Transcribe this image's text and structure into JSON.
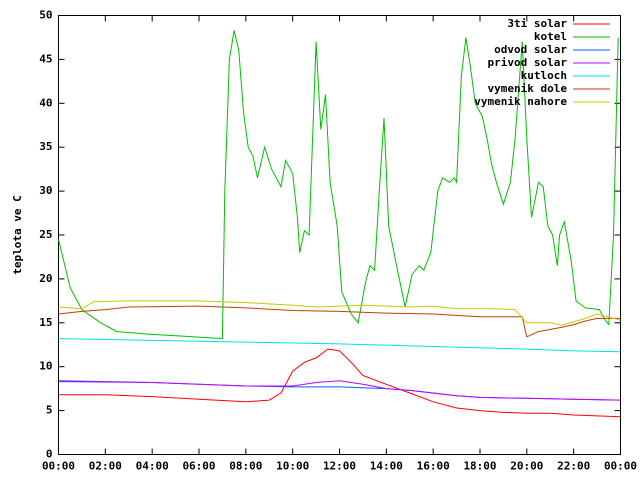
{
  "chart_data": {
    "type": "line",
    "y_label": "teplota ve C",
    "xlim": [
      0,
      24
    ],
    "xticks": [
      {
        "value": 0,
        "label": "00:00"
      },
      {
        "value": 2,
        "label": "02:00"
      },
      {
        "value": 4,
        "label": "04:00"
      },
      {
        "value": 6,
        "label": "06:00"
      },
      {
        "value": 8,
        "label": "08:00"
      },
      {
        "value": 10,
        "label": "10:00"
      },
      {
        "value": 12,
        "label": "12:00"
      },
      {
        "value": 14,
        "label": "14:00"
      },
      {
        "value": 16,
        "label": "16:00"
      },
      {
        "value": 18,
        "label": "18:00"
      },
      {
        "value": 20,
        "label": "20:00"
      },
      {
        "value": 22,
        "label": "22:00"
      },
      {
        "value": 24,
        "label": "00:00"
      }
    ],
    "ylim": [
      0,
      50
    ],
    "yticks": [
      0,
      5,
      10,
      15,
      20,
      25,
      30,
      35,
      40,
      45,
      50
    ],
    "legend": "top-right",
    "series": [
      {
        "name": "3ti solar",
        "color": "#ff0000",
        "x": [
          0,
          2,
          4,
          6,
          8,
          9,
          9.5,
          10,
          10.5,
          11,
          11.5,
          12,
          12.5,
          13,
          14,
          15,
          16,
          17,
          18,
          19,
          20,
          21,
          22,
          23,
          24
        ],
        "values": [
          6.8,
          6.8,
          6.6,
          6.3,
          6.0,
          6.2,
          7,
          9.5,
          10.5,
          11,
          12,
          11.8,
          10.5,
          9,
          8,
          7,
          6,
          5.3,
          5,
          4.8,
          4.7,
          4.7,
          4.5,
          4.4,
          4.3
        ]
      },
      {
        "name": "kotel",
        "color": "#00c000",
        "x": [
          0,
          0.5,
          1,
          1.8,
          2.5,
          3.9,
          5.2,
          7.0,
          7.1,
          7.3,
          7.5,
          7.7,
          7.9,
          8.1,
          8.3,
          8.5,
          8.8,
          9.1,
          9.5,
          9.7,
          10.0,
          10.2,
          10.3,
          10.5,
          10.7,
          11.0,
          11.2,
          11.4,
          11.6,
          11.9,
          12.1,
          12.5,
          12.8,
          13.1,
          13.3,
          13.5,
          13.7,
          13.9,
          14.1,
          14.4,
          14.8,
          15.1,
          15.4,
          15.6,
          15.9,
          16.2,
          16.4,
          16.7,
          16.9,
          17.0,
          17.2,
          17.4,
          17.6,
          17.8,
          18.1,
          18.3,
          18.5,
          18.7,
          19.0,
          19.3,
          19.5,
          19.8,
          20.0,
          20.2,
          20.5,
          20.7,
          20.9,
          21.1,
          21.3,
          21.4,
          21.6,
          21.9,
          22.1,
          22.5,
          23.1,
          23.3,
          23.5,
          23.7,
          23.9
        ],
        "values": [
          24.5,
          19,
          16.5,
          15,
          14,
          13.7,
          13.5,
          13.2,
          30,
          45,
          48.3,
          46,
          39,
          35,
          34,
          31.5,
          35,
          32.5,
          30.5,
          33.5,
          32,
          27,
          23,
          25.5,
          25,
          47,
          37,
          41,
          31,
          26,
          18.5,
          16,
          15,
          19.5,
          21.5,
          21,
          30,
          38.3,
          26,
          22,
          16.8,
          20.5,
          21.5,
          21,
          23,
          30,
          31.5,
          31,
          31.5,
          31,
          43,
          47.5,
          44,
          40,
          38.5,
          36,
          33,
          31,
          28.5,
          31,
          36,
          47,
          36,
          27,
          31,
          30.5,
          26,
          25,
          21.5,
          25,
          26.5,
          22,
          17.5,
          16.7,
          16.5,
          15.5,
          14.8,
          25,
          47.5
        ]
      },
      {
        "name": "odvod solar",
        "color": "#0060ff",
        "x": [
          0,
          4,
          6,
          8,
          10,
          12,
          14,
          15,
          16,
          17,
          18,
          20,
          22,
          24
        ],
        "values": [
          8.4,
          8.2,
          8.0,
          7.8,
          7.7,
          7.7,
          7.5,
          7.3,
          7.0,
          6.7,
          6.5,
          6.4,
          6.3,
          6.2
        ]
      },
      {
        "name": "privod solar",
        "color": "#c000ff",
        "x": [
          0,
          4,
          6,
          8,
          10,
          11,
          12,
          13,
          14,
          15,
          16,
          17,
          18,
          20,
          22,
          24
        ],
        "values": [
          8.3,
          8.2,
          8.0,
          7.8,
          7.8,
          8.2,
          8.4,
          8.0,
          7.5,
          7.3,
          7.0,
          6.7,
          6.5,
          6.4,
          6.3,
          6.2
        ]
      },
      {
        "name": "kutloch",
        "color": "#00e0e0",
        "x": [
          0,
          4,
          8,
          12,
          16,
          20,
          22,
          24
        ],
        "values": [
          13.2,
          13.0,
          12.8,
          12.6,
          12.3,
          12.0,
          11.8,
          11.7
        ]
      },
      {
        "name": "vymenik dole",
        "color": "#c04000",
        "x": [
          0,
          1,
          2,
          3,
          6,
          8,
          10,
          12,
          14,
          16,
          18,
          19.8,
          20.0,
          20.5,
          21.5,
          22,
          22.5,
          23,
          24
        ],
        "values": [
          16,
          16.3,
          16.5,
          16.8,
          16.9,
          16.7,
          16.4,
          16.3,
          16.1,
          16.0,
          15.7,
          15.7,
          13.4,
          14,
          14.5,
          14.8,
          15.2,
          15.5,
          15.5
        ]
      },
      {
        "name": "vymenik nahore",
        "color": "#c8c800",
        "x": [
          0,
          1,
          1.5,
          3,
          6,
          8,
          10,
          11,
          12,
          13,
          15,
          16,
          17,
          18.5,
          19.5,
          20,
          21,
          21.5,
          22.5,
          23,
          24
        ],
        "values": [
          16.8,
          16.6,
          17.4,
          17.5,
          17.5,
          17.3,
          17,
          16.8,
          16.9,
          17.0,
          16.8,
          16.9,
          16.6,
          16.6,
          16.5,
          15,
          15,
          14.7,
          15.5,
          16,
          15.3
        ]
      }
    ]
  }
}
